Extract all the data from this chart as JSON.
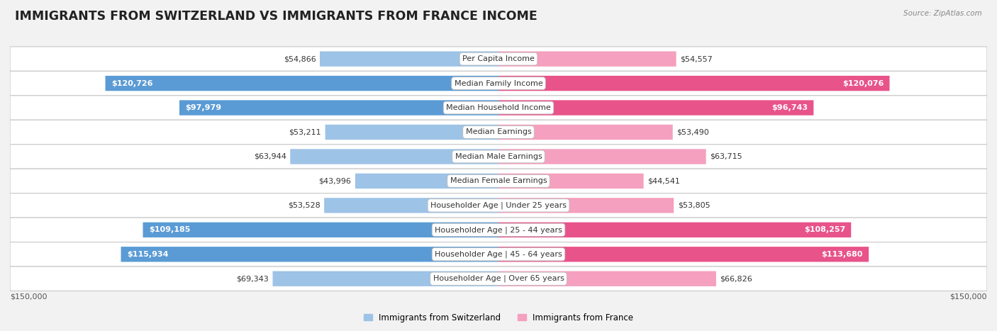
{
  "title": "IMMIGRANTS FROM SWITZERLAND VS IMMIGRANTS FROM FRANCE INCOME",
  "source": "Source: ZipAtlas.com",
  "categories": [
    "Per Capita Income",
    "Median Family Income",
    "Median Household Income",
    "Median Earnings",
    "Median Male Earnings",
    "Median Female Earnings",
    "Householder Age | Under 25 years",
    "Householder Age | 25 - 44 years",
    "Householder Age | 45 - 64 years",
    "Householder Age | Over 65 years"
  ],
  "switzerland_values": [
    54866,
    120726,
    97979,
    53211,
    63944,
    43996,
    53528,
    109185,
    115934,
    69343
  ],
  "france_values": [
    54557,
    120076,
    96743,
    53490,
    63715,
    44541,
    53805,
    108257,
    113680,
    66826
  ],
  "switzerland_labels": [
    "$54,866",
    "$120,726",
    "$97,979",
    "$53,211",
    "$63,944",
    "$43,996",
    "$53,528",
    "$109,185",
    "$115,934",
    "$69,343"
  ],
  "france_labels": [
    "$54,557",
    "$120,076",
    "$96,743",
    "$53,490",
    "$63,715",
    "$44,541",
    "$53,805",
    "$108,257",
    "$113,680",
    "$66,826"
  ],
  "max_value": 150000,
  "sw_color_dark": "#5b9bd5",
  "sw_color_light": "#9dc3e6",
  "fr_color_dark": "#e8538a",
  "fr_color_light": "#f4a0be",
  "bar_height": 0.62,
  "background_color": "#f2f2f2",
  "row_bg": "#ffffff",
  "row_border": "#c8c8c8",
  "title_fontsize": 12.5,
  "label_fontsize": 8.0,
  "legend_fontsize": 8.5,
  "axis_fontsize": 8.0,
  "threshold": 0.58
}
